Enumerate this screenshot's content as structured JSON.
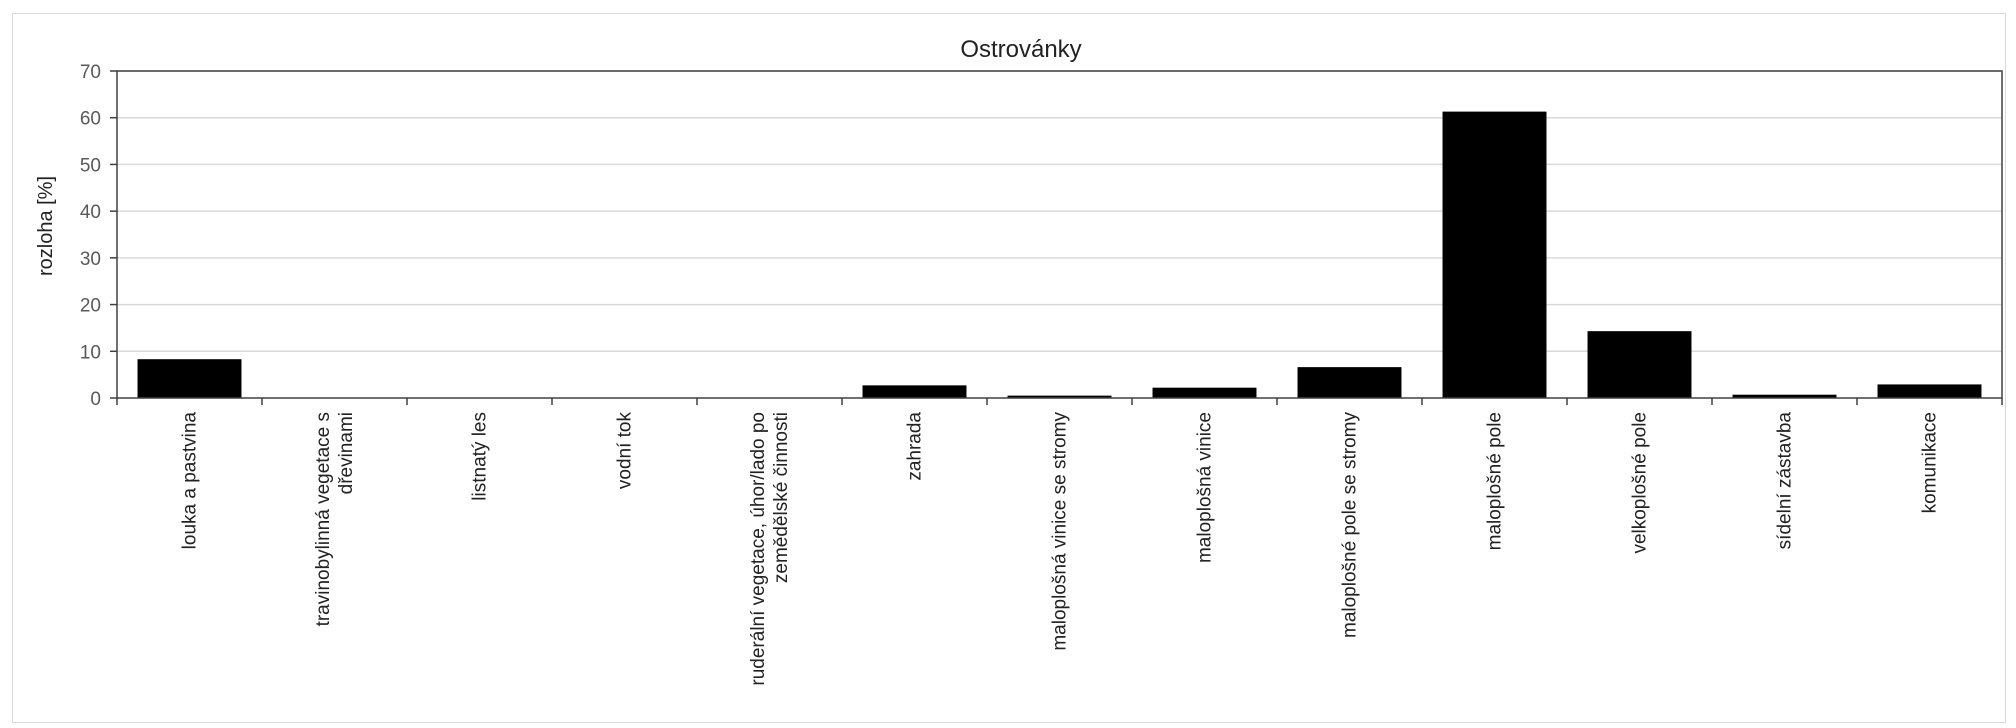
{
  "chart_data": {
    "type": "bar",
    "title": "Ostrovánky",
    "xlabel": "",
    "ylabel": "rozloha [%]",
    "ylim": [
      0,
      70
    ],
    "yticks": [
      0,
      10,
      20,
      30,
      40,
      50,
      60,
      70
    ],
    "grid": true,
    "legend": "none",
    "bar_color": "#000000",
    "categories": [
      "louka a pastvina",
      "travinobylinná vegetace s dřevinami",
      "listnatý les",
      "vodní tok",
      "ruderální vegetace, úhor/lado po zemědělské činnosti",
      "zahrada",
      "maloplošná vinice se stromy",
      "maloplošná vinice",
      "maloplošné pole se stromy",
      "maloplošné pole",
      "velkoplošné pole",
      "sídelní zástavba",
      "komunikace"
    ],
    "category_label_lines": [
      [
        "louka a pastvina"
      ],
      [
        "travinobylinná vegetace s",
        "dřevinami"
      ],
      [
        "listnatý les"
      ],
      [
        "vodní tok"
      ],
      [
        "ruderální vegetace, úhor/lado po",
        "zemědělské činnosti"
      ],
      [
        "zahrada"
      ],
      [
        "maloplošná vinice se stromy"
      ],
      [
        "maloplošná vinice"
      ],
      [
        "maloplošné pole se stromy"
      ],
      [
        "maloplošné pole"
      ],
      [
        "velkoplošné pole"
      ],
      [
        "sídelní zástavba"
      ],
      [
        "komunikace"
      ]
    ],
    "values": [
      8.2,
      0,
      0,
      0,
      0,
      2.6,
      0.4,
      2.1,
      6.5,
      61.2,
      14.2,
      0.6,
      2.8
    ]
  }
}
